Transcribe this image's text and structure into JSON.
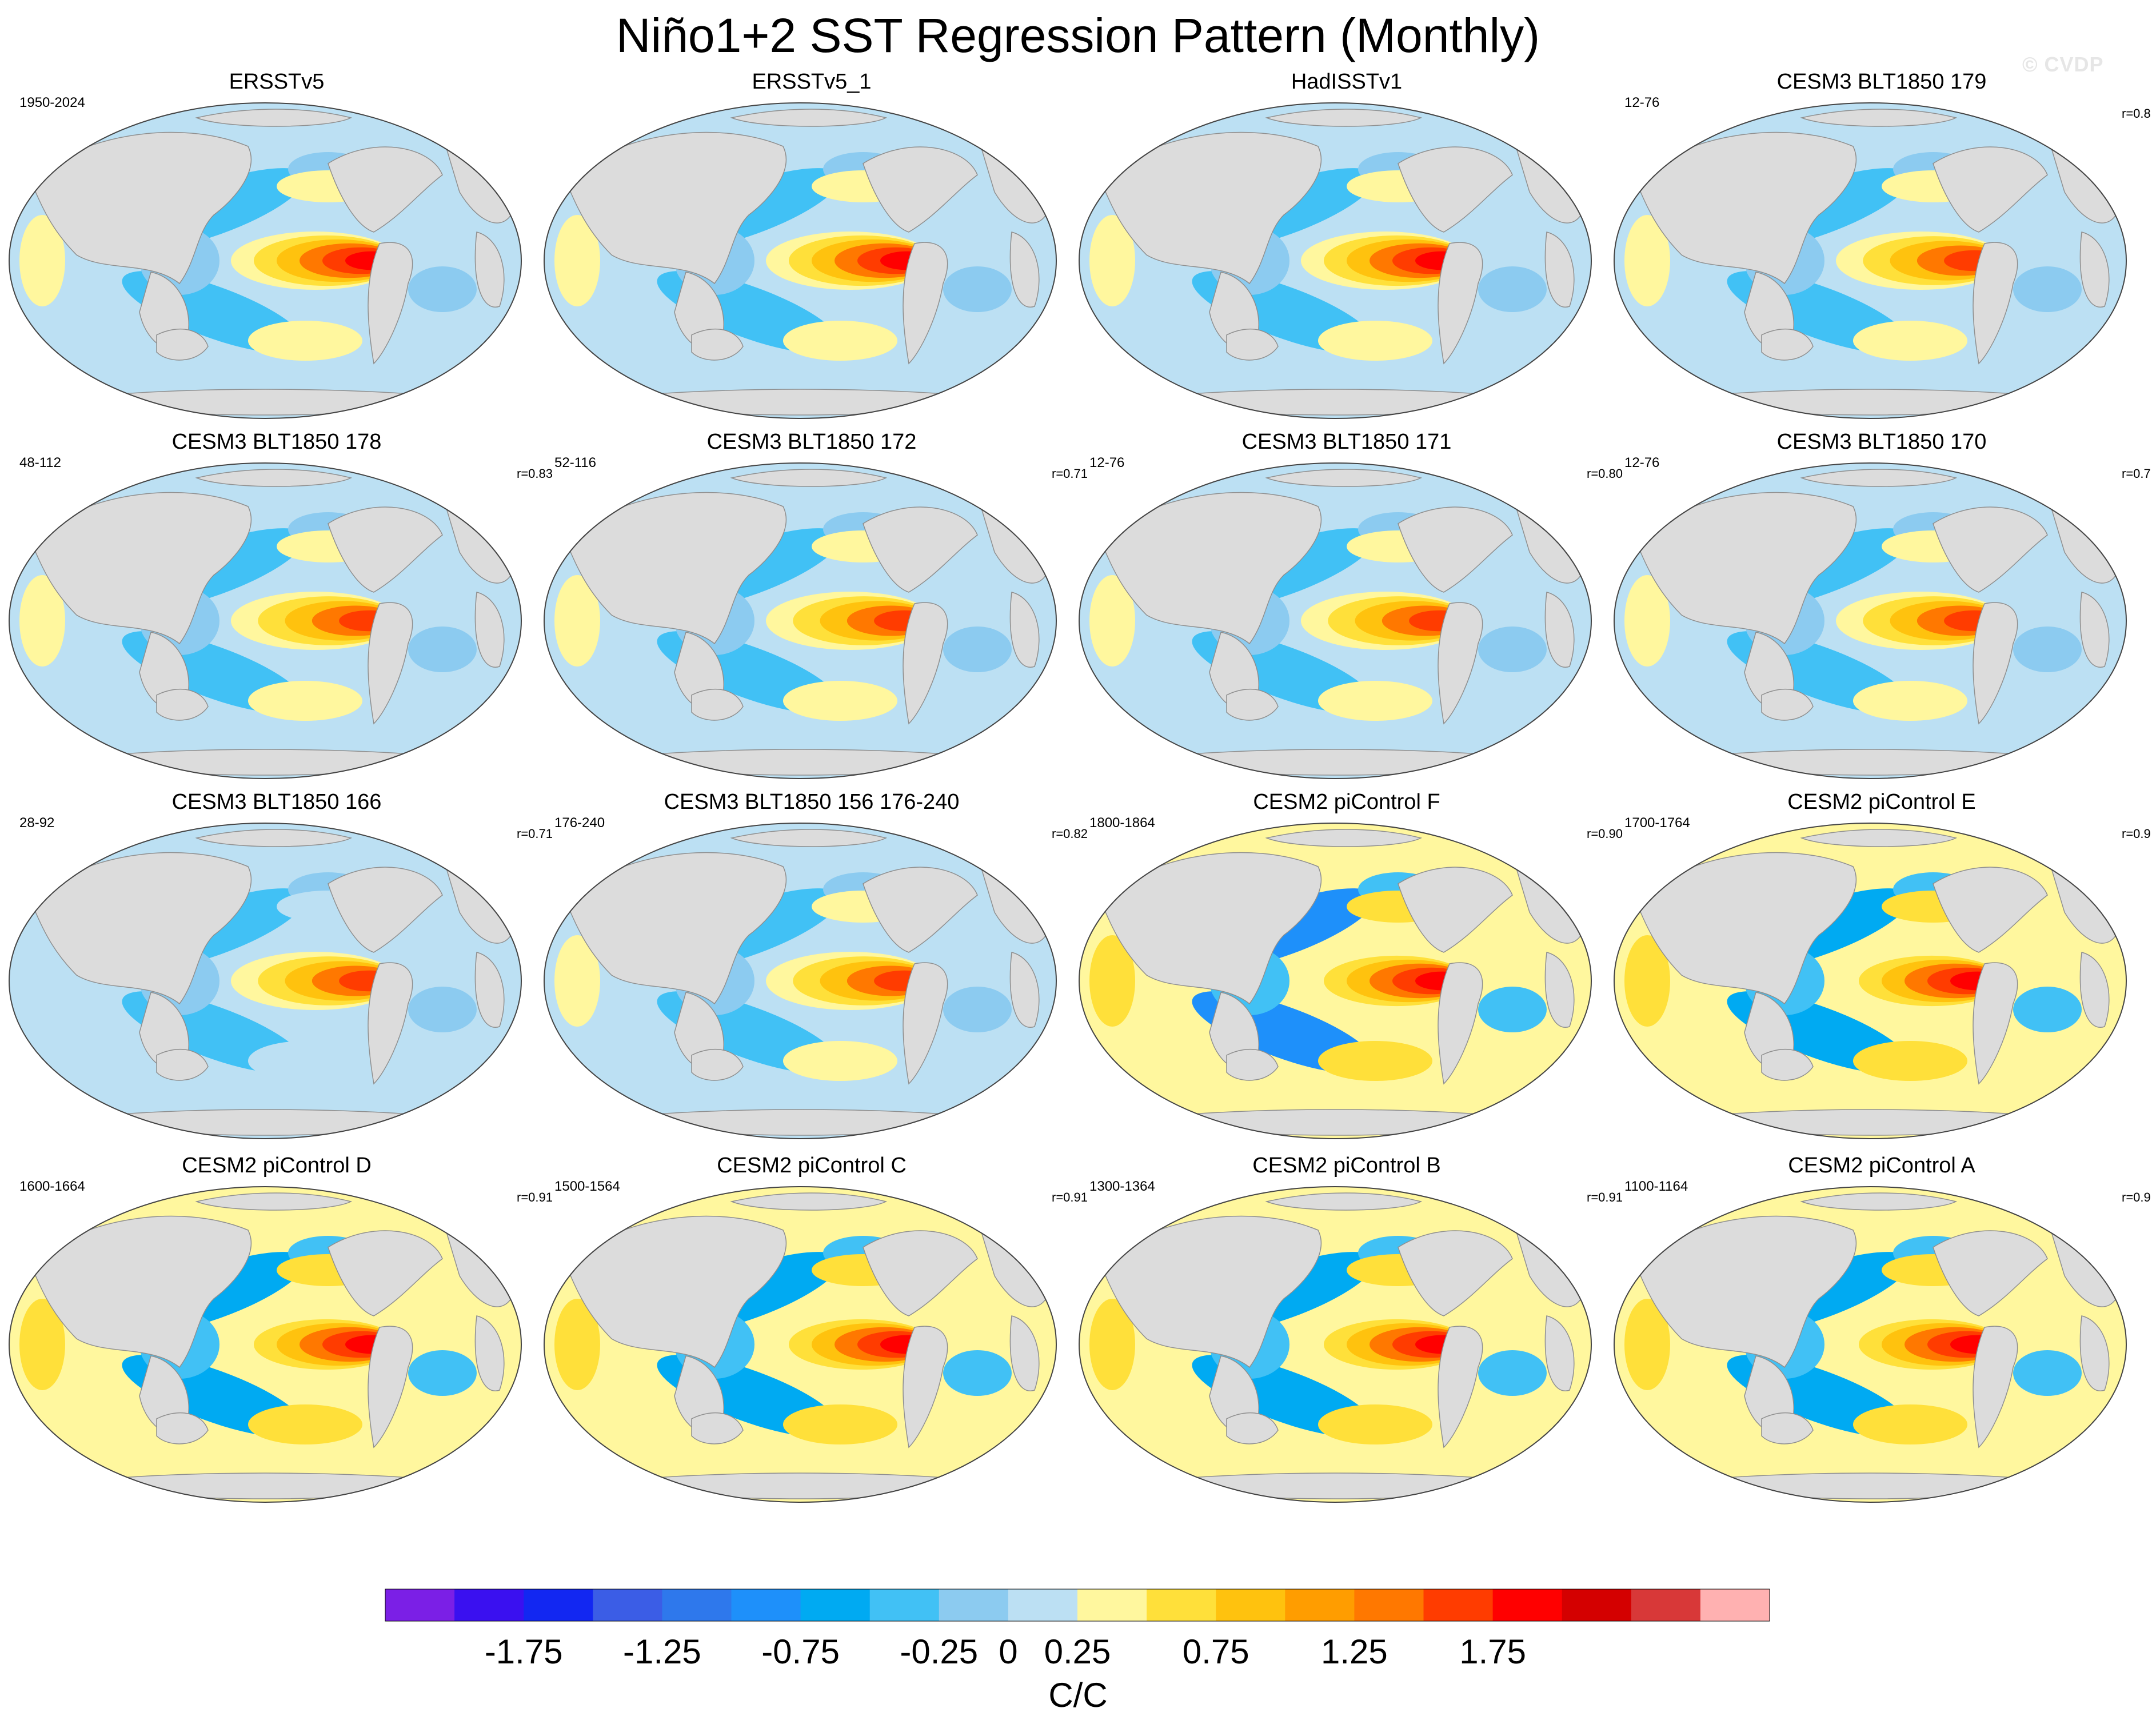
{
  "title": "Niño1+2 SST Regression Pattern (Monthly)",
  "watermark": "© CVDP",
  "chart_data": {
    "type": "contour-map-grid",
    "projection": "Robinson (global, Pacific-centred)",
    "variable": "SST regression onto Niño1+2 index",
    "units": "C/C",
    "panels": [
      {
        "title": "ERSSTv5",
        "period": "1950-2024",
        "r": "",
        "peak": 1.9,
        "offpos": 0.35,
        "offneg": -0.35
      },
      {
        "title": "ERSSTv5_1",
        "period": "",
        "r": "",
        "peak": 1.8,
        "offpos": 0.4,
        "offneg": -0.35
      },
      {
        "title": "HadISSTv1",
        "period": "",
        "r": "",
        "peak": 1.9,
        "offpos": 0.35,
        "offneg": -0.3
      },
      {
        "title": "CESM3 BLT1850 179",
        "period": "12-76",
        "r": "r=0.8",
        "peak": 1.6,
        "offpos": 0.25,
        "offneg": -0.3
      },
      {
        "title": "CESM3 BLT1850 178",
        "period": "48-112",
        "r": "r=0.83",
        "peak": 1.7,
        "offpos": 0.3,
        "offneg": -0.3
      },
      {
        "title": "CESM3 BLT1850 172",
        "period": "52-116",
        "r": "r=0.71",
        "peak": 1.6,
        "offpos": 0.25,
        "offneg": -0.3
      },
      {
        "title": "CESM3 BLT1850 171",
        "period": "12-76",
        "r": "r=0.80",
        "peak": 1.5,
        "offpos": 0.25,
        "offneg": -0.3
      },
      {
        "title": "CESM3 BLT1850 170",
        "period": "12-76",
        "r": "r=0.7",
        "peak": 1.5,
        "offpos": 0.25,
        "offneg": -0.3
      },
      {
        "title": "CESM3 BLT1850 166",
        "period": "28-92",
        "r": "r=0.71",
        "peak": 1.6,
        "offpos": 0.2,
        "offneg": -0.3
      },
      {
        "title": "CESM3 BLT1850 156 176-240",
        "period": "176-240",
        "r": "r=0.82",
        "peak": 1.5,
        "offpos": 0.25,
        "offneg": -0.3
      },
      {
        "title": "CESM2 piControl F",
        "period": "1800-1864",
        "r": "r=0.90",
        "peak": 2.0,
        "offpos": 0.6,
        "offneg": -0.8
      },
      {
        "title": "CESM2 piControl E",
        "period": "1700-1764",
        "r": "r=0.9",
        "peak": 1.9,
        "offpos": 0.55,
        "offneg": -0.7
      },
      {
        "title": "CESM2 piControl D",
        "period": "1600-1664",
        "r": "r=0.91",
        "peak": 1.9,
        "offpos": 0.6,
        "offneg": -0.7
      },
      {
        "title": "CESM2 piControl C",
        "period": "1500-1564",
        "r": "r=0.91",
        "peak": 1.9,
        "offpos": 0.55,
        "offneg": -0.6
      },
      {
        "title": "CESM2 piControl B",
        "period": "1300-1364",
        "r": "r=0.91",
        "peak": 1.9,
        "offpos": 0.6,
        "offneg": -0.7
      },
      {
        "title": "CESM2 piControl A",
        "period": "1100-1164",
        "r": "r=0.9",
        "peak": 1.8,
        "offpos": 0.55,
        "offneg": -0.6
      }
    ],
    "colorbar": {
      "label": "C/C",
      "levels": [
        -2,
        -1.75,
        -1.5,
        -1.25,
        -1,
        -0.75,
        -0.5,
        -0.25,
        0,
        0.25,
        0.5,
        0.75,
        1,
        1.25,
        1.5,
        1.75,
        2
      ],
      "tick_labels": [
        "-1.75",
        "-1.25",
        "-0.75",
        "-0.25",
        "0",
        "0.25",
        "0.75",
        "1.25",
        "1.75"
      ],
      "tick_values": [
        -1.75,
        -1.25,
        -0.75,
        -0.25,
        0,
        0.25,
        0.75,
        1.25,
        1.75
      ],
      "colors": [
        "#7b1fe6",
        "#3a10f0",
        "#1227f2",
        "#3b5de6",
        "#2e78ec",
        "#1e90fa",
        "#00aaf2",
        "#41c1f5",
        "#8ccbf0",
        "#bce0f3",
        "#fff79e",
        "#ffe03a",
        "#ffc20e",
        "#ff9d00",
        "#ff7800",
        "#ff3c00",
        "#ff0000",
        "#d40000",
        "#d83838",
        "#ffb1b1"
      ]
    }
  }
}
